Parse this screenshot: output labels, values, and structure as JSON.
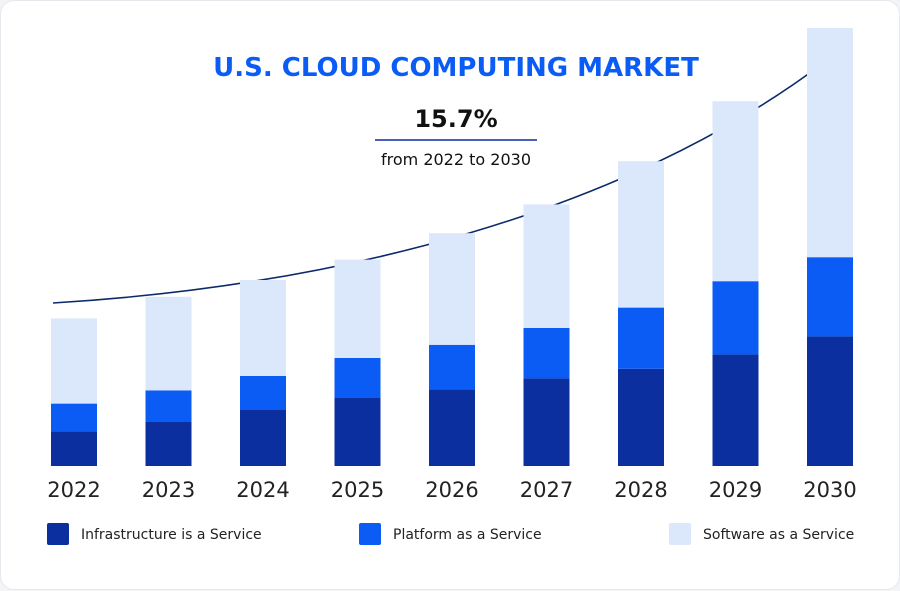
{
  "chart_data": {
    "type": "bar",
    "stacked": true,
    "title": "U.S. CLOUD COMPUTING MARKET",
    "annotation": {
      "value": "15.7%",
      "text": "from 2022 to 2030"
    },
    "categories": [
      "2022",
      "2023",
      "2024",
      "2025",
      "2026",
      "2027",
      "2028",
      "2029",
      "2030"
    ],
    "series": [
      {
        "name": "Infrastructure is a Service",
        "color": "#0b2f9f",
        "values": [
          29,
          37,
          47,
          57,
          64,
          73,
          81,
          93,
          108
        ]
      },
      {
        "name": "Platform as a Service",
        "color": "#0a5cf5",
        "values": [
          23,
          26,
          28,
          33,
          37,
          42,
          51,
          61,
          66
        ]
      },
      {
        "name": "Software as a Service",
        "color": "#dbe7fb",
        "values": [
          71,
          78,
          80,
          82,
          93,
          103,
          122,
          150,
          191
        ]
      }
    ],
    "legend_position": "bottom",
    "grid": false,
    "trend_arrow": true,
    "colors": {
      "title": "#0a5cf5",
      "text": "#111111",
      "tick": "#222222",
      "rule": "#0b2f9f",
      "arrow": "#0b2a6b"
    }
  }
}
